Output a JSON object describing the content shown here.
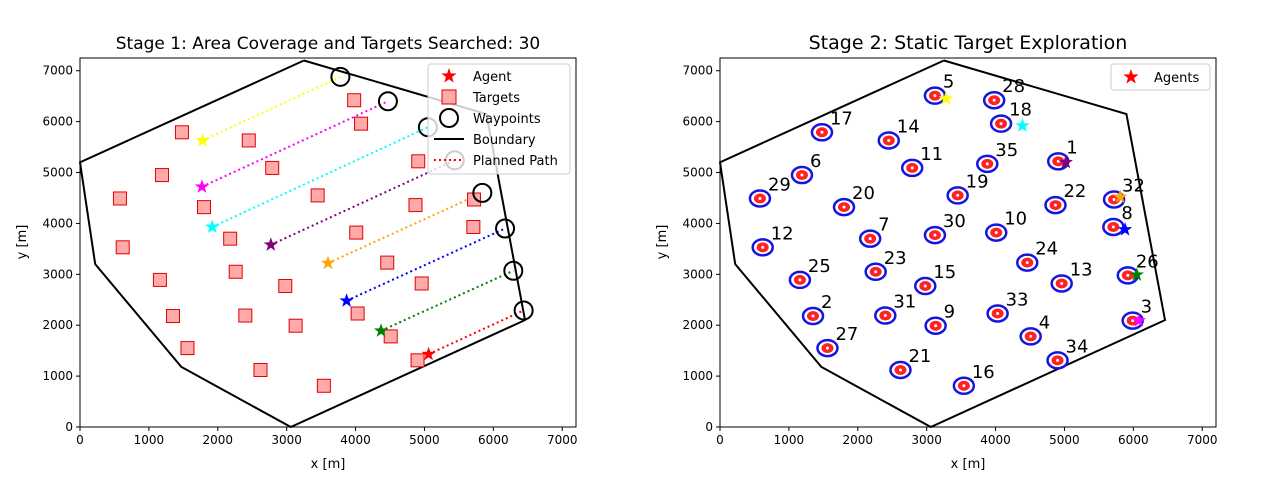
{
  "chart_data": [
    {
      "type": "scatter",
      "title": "Stage 1: Area Coverage and Targets Searched: 30",
      "xlabel": "x [m]",
      "ylabel": "y [m]",
      "xlim": [
        0,
        7200
      ],
      "ylim": [
        0,
        7250
      ],
      "xticks": [
        "0",
        "1000",
        "2000",
        "3000",
        "4000",
        "5000",
        "6000",
        "7000"
      ],
      "yticks": [
        "0",
        "1000",
        "2000",
        "3000",
        "4000",
        "5000",
        "6000",
        "7000"
      ],
      "xtick_values": [
        0,
        1000,
        2000,
        3000,
        4000,
        5000,
        6000,
        7000
      ],
      "ytick_values": [
        0,
        1000,
        2000,
        3000,
        4000,
        5000,
        6000,
        7000
      ],
      "legend_position": "top-right",
      "legend": [
        "Agent",
        "Targets",
        "Waypoints",
        "Boundary",
        "Planned Path"
      ],
      "boundary": [
        [
          3250,
          7200
        ],
        [
          5900,
          6150
        ],
        [
          6460,
          2100
        ],
        [
          3060,
          0
        ],
        [
          1470,
          1180
        ],
        [
          220,
          3200
        ],
        [
          0,
          5200
        ],
        [
          3250,
          7200
        ]
      ],
      "targets": [
        [
          1480,
          5790
        ],
        [
          2450,
          5630
        ],
        [
          3980,
          6420
        ],
        [
          4080,
          5960
        ],
        [
          1190,
          4950
        ],
        [
          2790,
          5090
        ],
        [
          4910,
          5220
        ],
        [
          580,
          4490
        ],
        [
          1800,
          4320
        ],
        [
          3450,
          4550
        ],
        [
          4870,
          4360
        ],
        [
          5720,
          4470
        ],
        [
          620,
          3530
        ],
        [
          2180,
          3700
        ],
        [
          4010,
          3820
        ],
        [
          5710,
          3930
        ],
        [
          2260,
          3050
        ],
        [
          4460,
          3230
        ],
        [
          1160,
          2890
        ],
        [
          2980,
          2770
        ],
        [
          4960,
          2820
        ],
        [
          1350,
          2180
        ],
        [
          2400,
          2190
        ],
        [
          3130,
          1990
        ],
        [
          4030,
          2230
        ],
        [
          4510,
          1780
        ],
        [
          1560,
          1550
        ],
        [
          2620,
          1120
        ],
        [
          3540,
          810
        ],
        [
          4900,
          1310
        ]
      ],
      "waypoints": [
        [
          3780,
          6880
        ],
        [
          4470,
          6400
        ],
        [
          5050,
          5890
        ],
        [
          5440,
          5240
        ],
        [
          5840,
          4600
        ],
        [
          6170,
          3900
        ],
        [
          6290,
          3070
        ],
        [
          6440,
          2290
        ]
      ],
      "agents": [
        {
          "x": 1780,
          "y": 5630,
          "color": "#ffff00"
        },
        {
          "x": 1770,
          "y": 4720,
          "color": "#ff00ff"
        },
        {
          "x": 1920,
          "y": 3930,
          "color": "#00ffff"
        },
        {
          "x": 2770,
          "y": 3580,
          "color": "#800080"
        },
        {
          "x": 3600,
          "y": 3220,
          "color": "#ffa500"
        },
        {
          "x": 3870,
          "y": 2480,
          "color": "#0000ff"
        },
        {
          "x": 4370,
          "y": 1890,
          "color": "#008000"
        },
        {
          "x": 5060,
          "y": 1430,
          "color": "#ff0000"
        }
      ],
      "planned_paths": [
        {
          "color": "#ffff00",
          "from": [
            1780,
            5630
          ],
          "to": [
            3780,
            6880
          ]
        },
        {
          "color": "#ff00ff",
          "from": [
            1770,
            4720
          ],
          "to": [
            4470,
            6400
          ]
        },
        {
          "color": "#00ffff",
          "from": [
            1920,
            3930
          ],
          "to": [
            5050,
            5890
          ]
        },
        {
          "color": "#800080",
          "from": [
            2770,
            3580
          ],
          "to": [
            5440,
            5240
          ]
        },
        {
          "color": "#ffa500",
          "from": [
            3600,
            3220
          ],
          "to": [
            5840,
            4600
          ]
        },
        {
          "color": "#0000ff",
          "from": [
            3870,
            2480
          ],
          "to": [
            6170,
            3900
          ]
        },
        {
          "color": "#008000",
          "from": [
            4370,
            1890
          ],
          "to": [
            6290,
            3070
          ]
        },
        {
          "color": "#ff0000",
          "from": [
            5060,
            1430
          ],
          "to": [
            6440,
            2290
          ]
        }
      ]
    },
    {
      "type": "scatter",
      "title": "Stage 2: Static Target Exploration",
      "xlabel": "x [m]",
      "ylabel": "y [m]",
      "xlim": [
        0,
        7200
      ],
      "ylim": [
        0,
        7250
      ],
      "xticks": [
        "0",
        "1000",
        "2000",
        "3000",
        "4000",
        "5000",
        "6000",
        "7000"
      ],
      "yticks": [
        "0",
        "1000",
        "2000",
        "3000",
        "4000",
        "5000",
        "6000",
        "7000"
      ],
      "xtick_values": [
        0,
        1000,
        2000,
        3000,
        4000,
        5000,
        6000,
        7000
      ],
      "ytick_values": [
        0,
        1000,
        2000,
        3000,
        4000,
        5000,
        6000,
        7000
      ],
      "legend_position": "top-right",
      "legend": [
        "Agents"
      ],
      "boundary": [
        [
          3250,
          7200
        ],
        [
          5900,
          6150
        ],
        [
          6460,
          2100
        ],
        [
          3060,
          0
        ],
        [
          1470,
          1180
        ],
        [
          220,
          3200
        ],
        [
          0,
          5200
        ],
        [
          3250,
          7200
        ]
      ],
      "targets": [
        {
          "label": "5",
          "x": 3120,
          "y": 6510
        },
        {
          "label": "28",
          "x": 3980,
          "y": 6420
        },
        {
          "label": "18",
          "x": 4080,
          "y": 5960
        },
        {
          "label": "17",
          "x": 1480,
          "y": 5790
        },
        {
          "label": "14",
          "x": 2450,
          "y": 5630
        },
        {
          "label": "1",
          "x": 4910,
          "y": 5220
        },
        {
          "label": "35",
          "x": 3880,
          "y": 5170
        },
        {
          "label": "11",
          "x": 2790,
          "y": 5090
        },
        {
          "label": "6",
          "x": 1190,
          "y": 4950
        },
        {
          "label": "32",
          "x": 5720,
          "y": 4470
        },
        {
          "label": "29",
          "x": 580,
          "y": 4490
        },
        {
          "label": "19",
          "x": 3450,
          "y": 4550
        },
        {
          "label": "22",
          "x": 4870,
          "y": 4360
        },
        {
          "label": "20",
          "x": 1800,
          "y": 4320
        },
        {
          "label": "8",
          "x": 5710,
          "y": 3930
        },
        {
          "label": "10",
          "x": 4010,
          "y": 3820
        },
        {
          "label": "30",
          "x": 3120,
          "y": 3770
        },
        {
          "label": "7",
          "x": 2180,
          "y": 3700
        },
        {
          "label": "12",
          "x": 620,
          "y": 3530
        },
        {
          "label": "24",
          "x": 4460,
          "y": 3230
        },
        {
          "label": "23",
          "x": 2260,
          "y": 3050
        },
        {
          "label": "26",
          "x": 5920,
          "y": 2980
        },
        {
          "label": "25",
          "x": 1160,
          "y": 2890
        },
        {
          "label": "13",
          "x": 4960,
          "y": 2820
        },
        {
          "label": "15",
          "x": 2980,
          "y": 2770
        },
        {
          "label": "33",
          "x": 4030,
          "y": 2230
        },
        {
          "label": "2",
          "x": 1350,
          "y": 2180
        },
        {
          "label": "31",
          "x": 2400,
          "y": 2190
        },
        {
          "label": "3",
          "x": 5990,
          "y": 2090
        },
        {
          "label": "9",
          "x": 3130,
          "y": 1990
        },
        {
          "label": "4",
          "x": 4510,
          "y": 1780
        },
        {
          "label": "27",
          "x": 1560,
          "y": 1550
        },
        {
          "label": "34",
          "x": 4900,
          "y": 1310
        },
        {
          "label": "21",
          "x": 2620,
          "y": 1120
        },
        {
          "label": "16",
          "x": 3540,
          "y": 810
        }
      ],
      "agents": [
        {
          "x": 3280,
          "y": 6450,
          "color": "#ffff00"
        },
        {
          "x": 4390,
          "y": 5920,
          "color": "#00ffff"
        },
        {
          "x": 5020,
          "y": 5200,
          "color": "#800080"
        },
        {
          "x": 5810,
          "y": 4520,
          "color": "#ffa500"
        },
        {
          "x": 5880,
          "y": 3880,
          "color": "#0000ff"
        },
        {
          "x": 6050,
          "y": 2990,
          "color": "#008000"
        },
        {
          "x": 6080,
          "y": 2090,
          "color": "#ff00ff"
        }
      ]
    }
  ]
}
